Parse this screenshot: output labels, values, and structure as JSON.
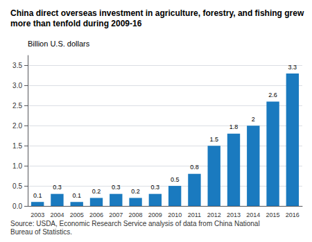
{
  "chart_data": {
    "type": "bar",
    "title": "China direct overseas investment in agriculture, forestry, and fishing grew more than tenfold during 2009-16",
    "y_label": "Billion U.S. dollars",
    "annotations": [
      "Source: USDA, Economic Research Service analysis of data from China National Bureau of Statistics."
    ],
    "categories": [
      "2003",
      "2004",
      "2005",
      "2006",
      "2007",
      "2008",
      "2009",
      "2010",
      "2011",
      "2012",
      "2013",
      "2014",
      "2015",
      "2016"
    ],
    "values": [
      0.1,
      0.3,
      0.1,
      0.2,
      0.3,
      0.2,
      0.3,
      0.5,
      0.8,
      1.5,
      1.8,
      2.0,
      2.6,
      3.3
    ],
    "color": "#1a7abf",
    "ylim": [
      0,
      3.75
    ],
    "yticks": [
      {
        "value": 0,
        "label": "0.0"
      },
      0.5,
      {
        "value": 1,
        "label": "1.0"
      },
      1.5,
      {
        "value": 2,
        "label": "2.0"
      },
      2.5,
      {
        "value": 3,
        "label": "3.0"
      },
      3.5
    ],
    "grid": true,
    "data_labels": true
  }
}
